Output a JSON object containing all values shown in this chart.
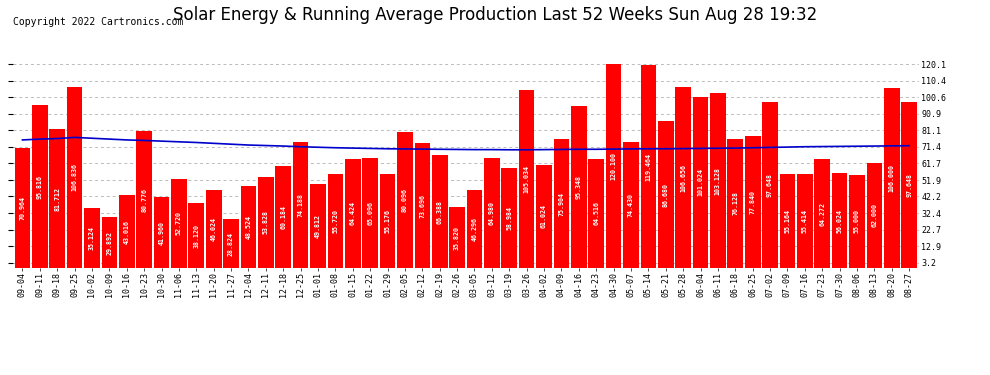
{
  "title": "Solar Energy & Running Average Production Last 52 Weeks Sun Aug 28 19:32",
  "copyright": "Copyright 2022 Cartronics.com",
  "bar_color": "#ff0000",
  "avg_line_color": "#0000cc",
  "background_color": "#ffffff",
  "plot_bg_color": "#ffffff",
  "grid_color": "#bbbbbb",
  "categories": [
    "09-04",
    "09-11",
    "09-18",
    "09-25",
    "10-02",
    "10-09",
    "10-16",
    "10-23",
    "10-30",
    "11-06",
    "11-13",
    "11-20",
    "11-27",
    "12-04",
    "12-11",
    "12-18",
    "12-25",
    "01-01",
    "01-08",
    "01-15",
    "01-22",
    "01-29",
    "02-05",
    "02-12",
    "02-19",
    "02-26",
    "03-05",
    "03-12",
    "03-19",
    "03-26",
    "04-02",
    "04-09",
    "04-16",
    "04-23",
    "04-30",
    "05-07",
    "05-14",
    "05-21",
    "05-28",
    "06-04",
    "06-11",
    "06-18",
    "06-25",
    "07-02",
    "07-09",
    "07-16",
    "07-23",
    "07-30",
    "08-06",
    "08-13",
    "08-20",
    "08-27"
  ],
  "weekly_values": [
    70.964,
    95.816,
    81.712,
    106.836,
    35.124,
    29.892,
    43.016,
    80.776,
    41.96,
    52.72,
    38.12,
    46.024,
    28.824,
    48.524,
    53.828,
    60.184,
    74.188,
    49.812,
    55.72,
    64.424,
    65.096,
    55.176,
    80.096,
    73.696,
    66.388,
    35.82,
    46.296,
    64.98,
    58.984,
    105.034,
    61.024,
    75.904,
    95.348,
    64.516,
    120.1,
    74.43,
    119.464,
    86.68,
    106.656,
    101.024,
    103.128,
    76.128,
    77.84,
    97.648,
    55.164,
    55.414,
    64.272,
    56.024,
    55.0,
    62.0,
    106.0,
    97.648
  ],
  "avg_values": [
    75.5,
    76.0,
    76.3,
    77.0,
    76.5,
    76.0,
    75.5,
    75.2,
    74.8,
    74.4,
    74.0,
    73.5,
    73.0,
    72.5,
    72.2,
    71.9,
    71.5,
    71.2,
    70.9,
    70.7,
    70.5,
    70.3,
    70.2,
    70.1,
    70.0,
    69.9,
    69.8,
    69.8,
    69.7,
    69.7,
    69.8,
    69.9,
    70.0,
    70.0,
    70.1,
    70.2,
    70.3,
    70.3,
    70.4,
    70.5,
    70.6,
    70.7,
    70.9,
    71.1,
    71.3,
    71.5,
    71.6,
    71.7,
    71.8,
    71.9,
    72.0,
    72.1
  ],
  "yticks": [
    3.2,
    12.9,
    22.7,
    32.4,
    42.2,
    51.9,
    61.7,
    71.4,
    81.1,
    90.9,
    100.6,
    110.4,
    120.1
  ],
  "ylim_min": 0,
  "ylim_max": 127,
  "title_fontsize": 12,
  "tick_fontsize": 6.0,
  "bar_label_fontsize": 4.8,
  "copyright_fontsize": 7,
  "legend_fontsize": 7.5
}
